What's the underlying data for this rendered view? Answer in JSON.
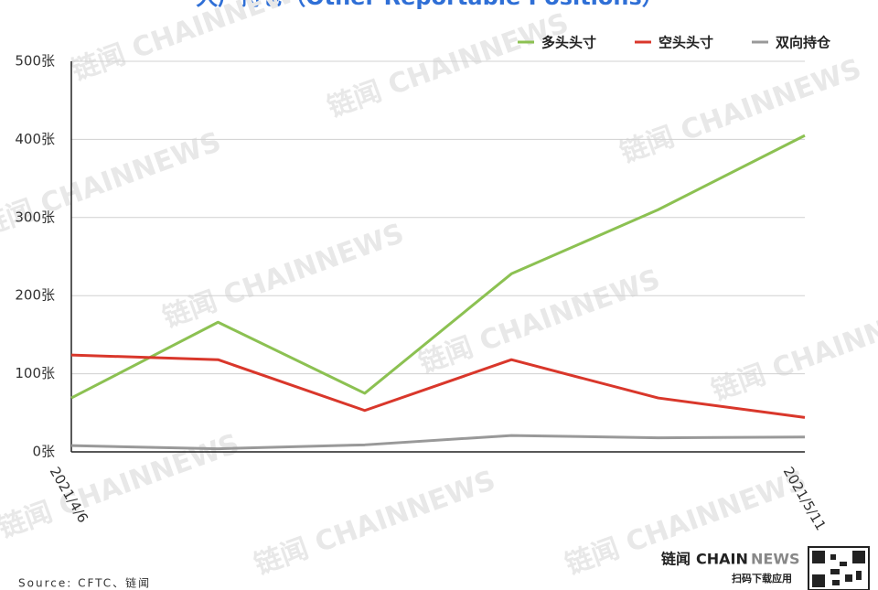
{
  "chart_data": {
    "type": "line",
    "title": "大户持仓（Other Reportable Positions）",
    "categories": [
      "2021/4/6",
      null,
      null,
      null,
      null,
      "2021/5/11"
    ],
    "series": [
      {
        "name": "多头头寸",
        "color": "#8cc152",
        "values": [
          69,
          166,
          75,
          228,
          310,
          405
        ]
      },
      {
        "name": "空头头寸",
        "color": "#d9372b",
        "values": [
          124,
          118,
          53,
          118,
          69,
          44
        ]
      },
      {
        "name": "双向持仓",
        "color": "#999999",
        "values": [
          8,
          4,
          9,
          21,
          18,
          19
        ]
      }
    ],
    "ylim": [
      0,
      500
    ],
    "yticks": [
      {
        "value": 0,
        "label": "0张"
      },
      {
        "value": 100,
        "label": "100张"
      },
      {
        "value": 200,
        "label": "200张"
      },
      {
        "value": 300,
        "label": "300张"
      },
      {
        "value": 400,
        "label": "400张"
      },
      {
        "value": 500,
        "label": "500张"
      }
    ],
    "grid": true,
    "legend": "top-right",
    "source": "Source: CFTC、链闻",
    "watermark": "链闻 CHAINNEWS",
    "logo": {
      "brand": "链闻",
      "name": "CHAIN",
      "name2": "NEWS",
      "tagline": "扫码下载应用"
    }
  }
}
